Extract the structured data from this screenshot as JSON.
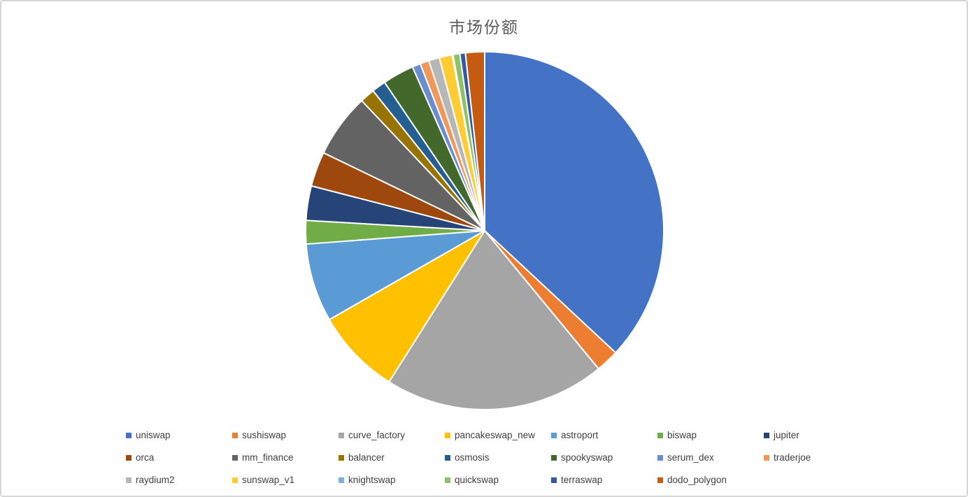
{
  "page": {
    "background_color": "#FFFFFF",
    "frame_border_color": "#D6D6D6"
  },
  "chart_data": {
    "type": "pie",
    "title": "市场份额",
    "title_color": "#595959",
    "legend_position": "bottom",
    "legend_text_color": "#404040",
    "start_angle_deg": 0,
    "direction": "clockwise",
    "slice_gap_color": "#FFFFFF",
    "slices": [
      {
        "label": "uniswap",
        "color": "#4472C4",
        "value_pct": 36.9,
        "angle_deg": 133.0
      },
      {
        "label": "sushiswap",
        "color": "#ED7D31",
        "value_pct": 2.1,
        "angle_deg": 7.5
      },
      {
        "label": "curve_factory",
        "color": "#A5A5A5",
        "value_pct": 19.9,
        "angle_deg": 71.8
      },
      {
        "label": "pancakeswap_new",
        "color": "#FFC000",
        "value_pct": 7.8,
        "angle_deg": 27.9
      },
      {
        "label": "astroport",
        "color": "#5B9BD5",
        "value_pct": 7.1,
        "angle_deg": 25.5
      },
      {
        "label": "biswap",
        "color": "#70AD47",
        "value_pct": 2.1,
        "angle_deg": 7.6
      },
      {
        "label": "jupiter",
        "color": "#264478",
        "value_pct": 3.1,
        "angle_deg": 11.2
      },
      {
        "label": "orca",
        "color": "#9E480E",
        "value_pct": 3.1,
        "angle_deg": 11.3
      },
      {
        "label": "mm_finance",
        "color": "#636363",
        "value_pct": 5.8,
        "angle_deg": 20.8
      },
      {
        "label": "balancer",
        "color": "#997300",
        "value_pct": 1.3,
        "angle_deg": 4.8
      },
      {
        "label": "osmosis",
        "color": "#255E91",
        "value_pct": 1.3,
        "angle_deg": 4.6
      },
      {
        "label": "spookyswap",
        "color": "#43682B",
        "value_pct": 2.8,
        "angle_deg": 10.2
      },
      {
        "label": "serum_dex",
        "color": "#698ED0",
        "value_pct": 0.8,
        "angle_deg": 2.7
      },
      {
        "label": "traderjoe",
        "color": "#F1975A",
        "value_pct": 0.8,
        "angle_deg": 2.9
      },
      {
        "label": "raydium2",
        "color": "#B7B7B7",
        "value_pct": 1.0,
        "angle_deg": 3.5
      },
      {
        "label": "sunswap_v1",
        "color": "#FFCD33",
        "value_pct": 1.2,
        "angle_deg": 4.2
      },
      {
        "label": "knightswap",
        "color": "#7CAFDD",
        "value_pct": 0.1,
        "angle_deg": 0.3
      },
      {
        "label": "quickswap",
        "color": "#8CC168",
        "value_pct": 0.6,
        "angle_deg": 2.2
      },
      {
        "label": "terraswap",
        "color": "#335AA1",
        "value_pct": 0.5,
        "angle_deg": 1.8
      },
      {
        "label": "dodo_polygon",
        "color": "#C55A11",
        "value_pct": 1.7,
        "angle_deg": 6.2
      }
    ],
    "legend_rows": [
      [
        0,
        1,
        2,
        3,
        4,
        5,
        6
      ],
      [
        7,
        8,
        9,
        10,
        11,
        12,
        13
      ],
      [
        14,
        15,
        16,
        17,
        18,
        19
      ]
    ]
  }
}
